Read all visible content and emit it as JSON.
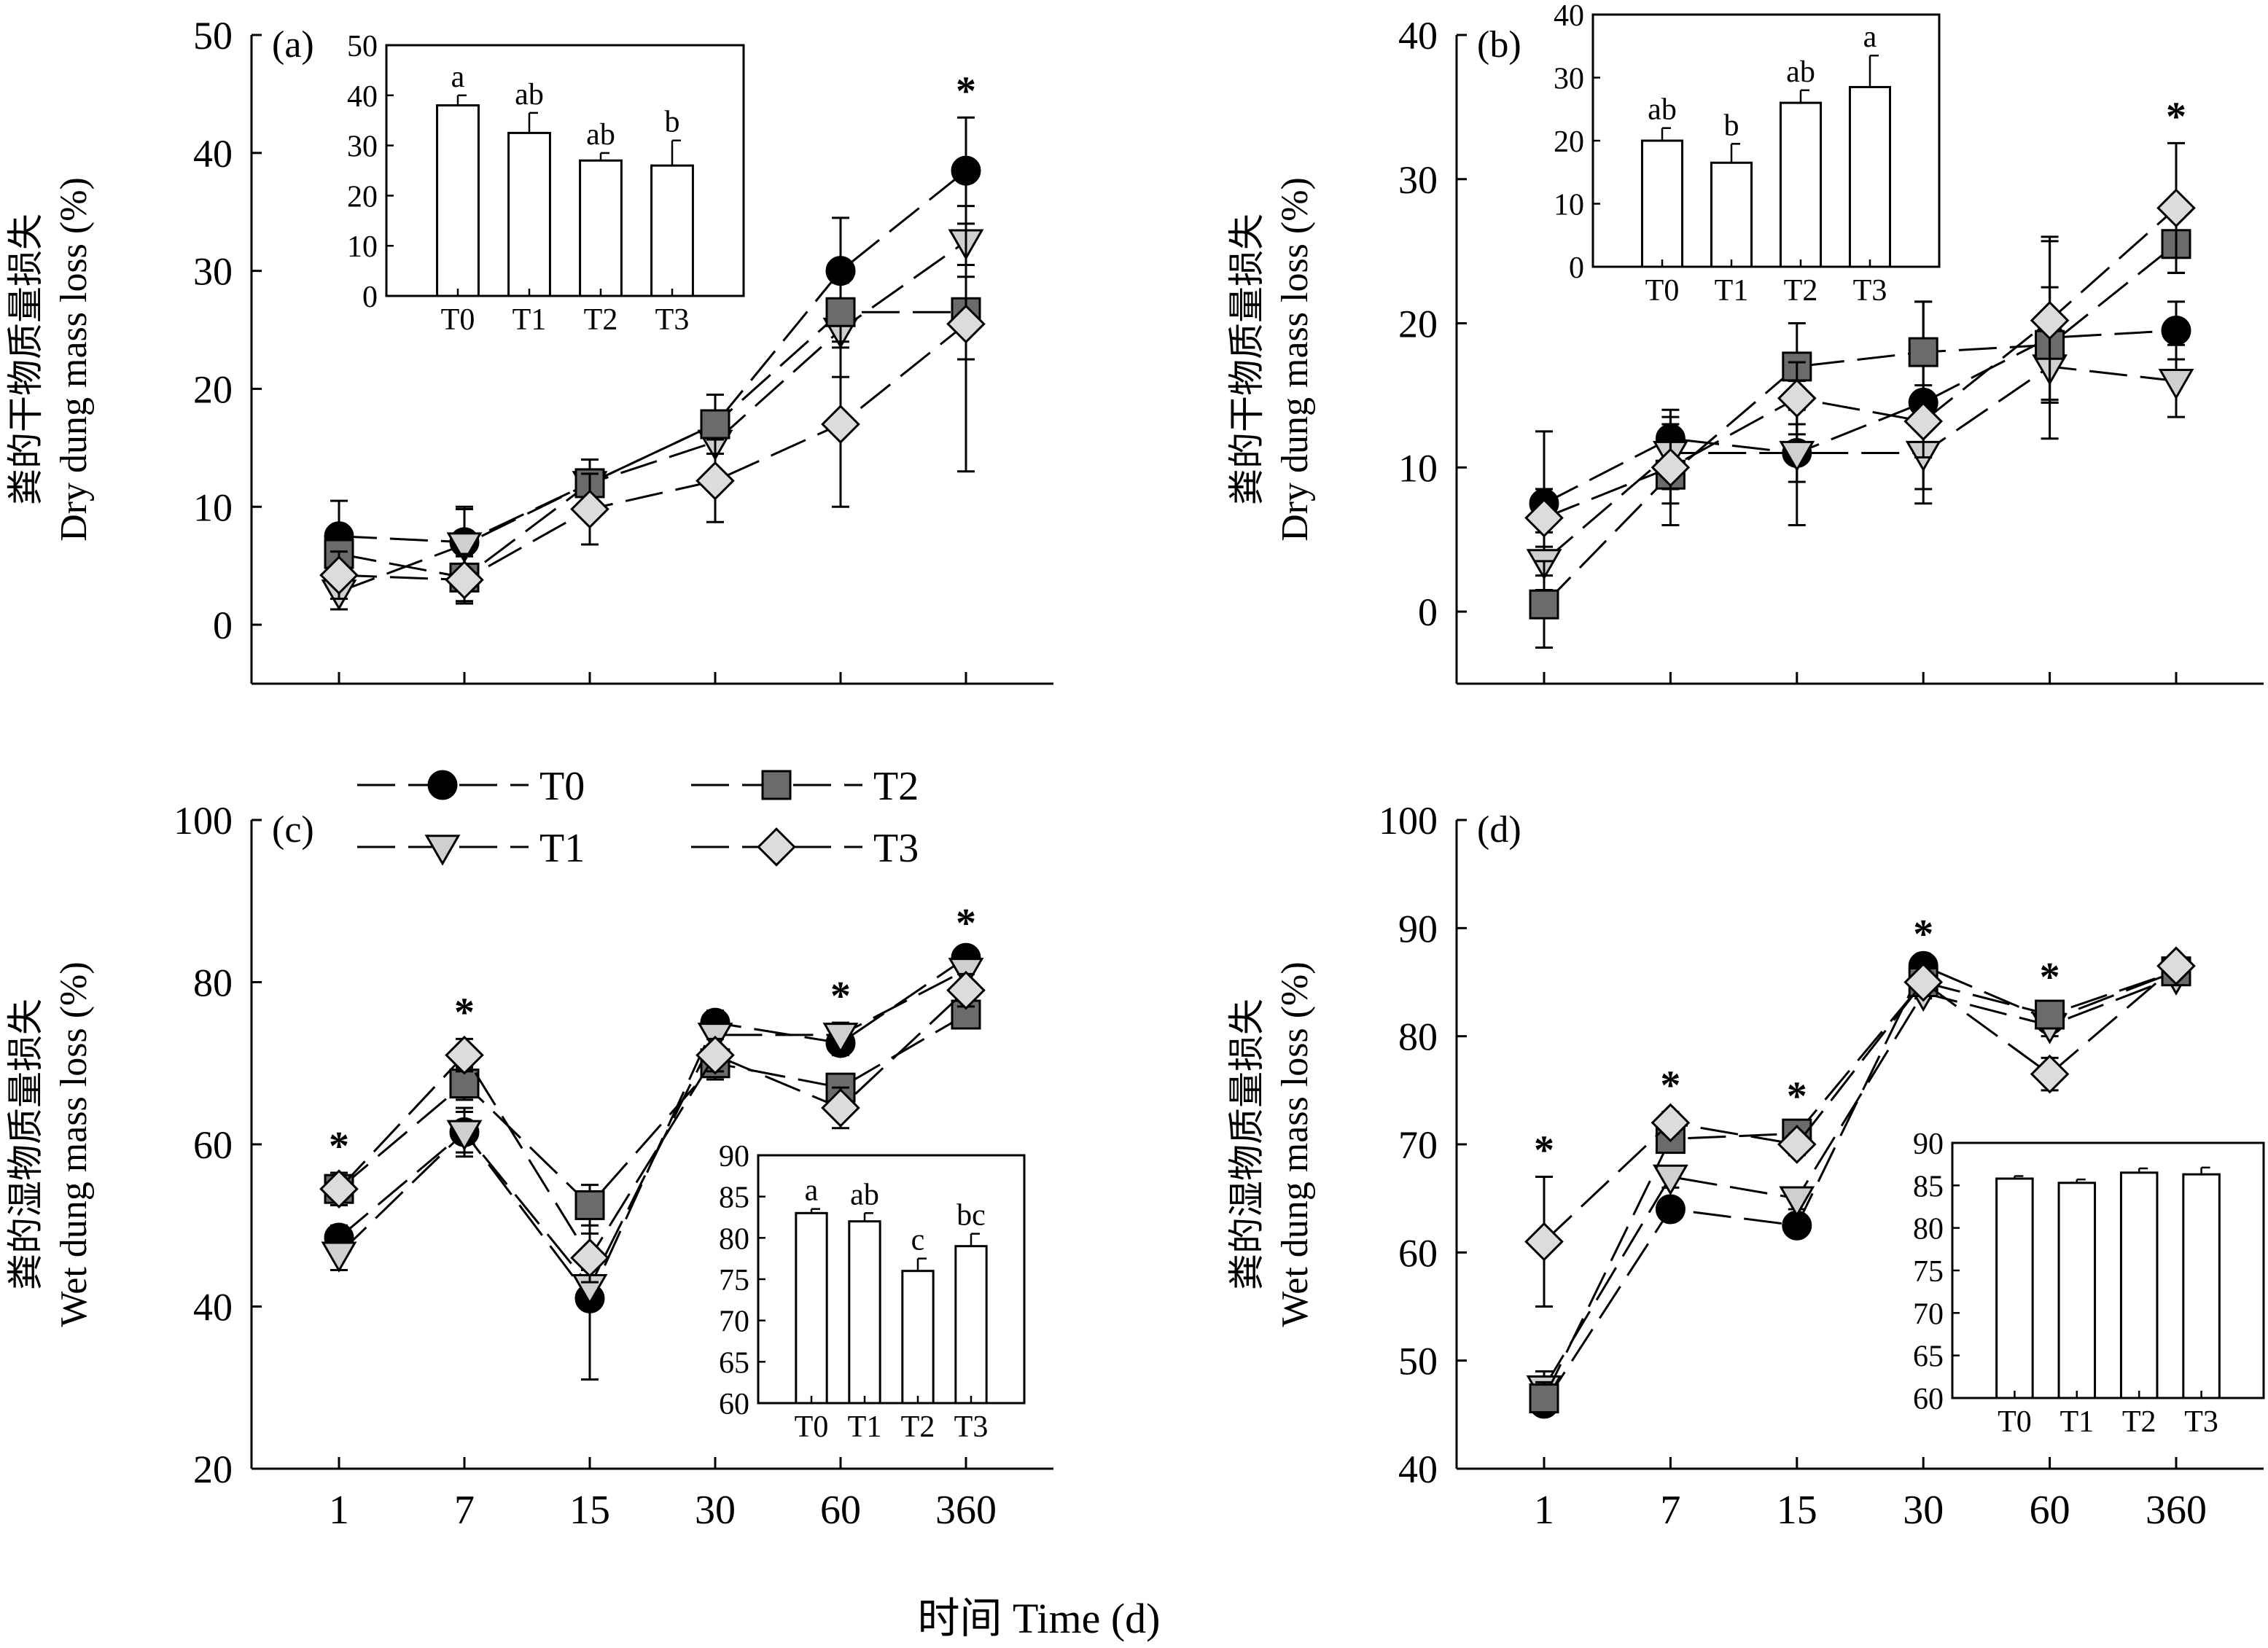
{
  "figure": {
    "xlabel": "时间 Time (d)"
  },
  "legend": {
    "items": [
      {
        "label": "T0",
        "marker": "circle",
        "fill": "#000000"
      },
      {
        "label": "T1",
        "marker": "triangle-down",
        "fill": "#cfcfcf"
      },
      {
        "label": "T2",
        "marker": "square",
        "fill": "#6b6b6b"
      },
      {
        "label": "T3",
        "marker": "diamond",
        "fill": "#dcdcdc"
      }
    ]
  },
  "chart_data": [
    {
      "id": "a",
      "panel_label": "(a)",
      "type": "line",
      "ylabel_cn": "粪的干物质量损失",
      "ylabel_en": "Dry dung mass loss (%)",
      "x": [
        "1",
        "7",
        "15",
        "30",
        "60",
        "360"
      ],
      "ylim": [
        -5,
        50
      ],
      "yticks": [
        0,
        10,
        20,
        30,
        40,
        50
      ],
      "series": [
        {
          "name": "T0",
          "values": [
            7.5,
            7.0,
            12.0,
            17.0,
            30.0,
            38.5
          ],
          "errors": [
            3.0,
            3.0,
            2.0,
            2.5,
            4.5,
            4.5
          ]
        },
        {
          "name": "T1",
          "values": [
            2.8,
            6.8,
            12.0,
            15.5,
            25.0,
            32.5
          ],
          "errors": [
            1.5,
            3.0,
            2.0,
            2.5,
            4.0,
            3.0
          ]
        },
        {
          "name": "T2",
          "values": [
            6.0,
            4.0,
            12.0,
            17.0,
            26.5,
            26.5
          ],
          "errors": [
            1.5,
            2.0,
            2.0,
            2.5,
            3.0,
            4.0
          ]
        },
        {
          "name": "T3",
          "values": [
            4.2,
            3.8,
            9.8,
            12.2,
            17.0,
            25.5
          ],
          "errors": [
            2.0,
            2.0,
            3.0,
            3.5,
            7.0,
            12.5
          ]
        }
      ],
      "significance": [
        {
          "x": "360",
          "label": "*"
        }
      ],
      "inset": {
        "type": "bar",
        "categories": [
          "T0",
          "T1",
          "T2",
          "T3"
        ],
        "values": [
          38,
          32.5,
          27,
          26
        ],
        "errors": [
          2,
          4,
          1.5,
          5
        ],
        "letters": [
          "a",
          "ab",
          "ab",
          "b"
        ],
        "ylim": [
          0,
          50
        ],
        "yticks": [
          0,
          10,
          20,
          30,
          40,
          50
        ]
      }
    },
    {
      "id": "b",
      "panel_label": "(b)",
      "type": "line",
      "ylabel_cn": "粪的干物质量损失",
      "ylabel_en": "Dry dung mass loss (%)",
      "x": [
        "1",
        "7",
        "15",
        "30",
        "60",
        "360"
      ],
      "ylim": [
        -5,
        40
      ],
      "yticks": [
        0,
        10,
        20,
        30,
        40
      ],
      "series": [
        {
          "name": "T0",
          "values": [
            7.5,
            12.0,
            11.0,
            14.5,
            19.0,
            19.5
          ],
          "errors": [
            5.0,
            2.0,
            5.0,
            7.0,
            7.0,
            2.0
          ]
        },
        {
          "name": "T1",
          "values": [
            3.5,
            11.0,
            11.0,
            11.0,
            17.0,
            16.0
          ],
          "errors": [
            2.0,
            2.5,
            2.0,
            2.5,
            2.5,
            2.5
          ]
        },
        {
          "name": "T2",
          "values": [
            0.5,
            9.5,
            17.0,
            18.0,
            18.5,
            25.5
          ],
          "errors": [
            3.0,
            3.5,
            3.0,
            3.5,
            4.0,
            2.0
          ]
        },
        {
          "name": "T3",
          "values": [
            6.5,
            10.0,
            14.8,
            13.2,
            20.2,
            28.0
          ],
          "errors": [
            2.0,
            2.5,
            2.5,
            2.5,
            5.5,
            4.5
          ]
        }
      ],
      "significance": [
        {
          "x": "360",
          "label": "*"
        }
      ],
      "inset": {
        "type": "bar",
        "categories": [
          "T0",
          "T1",
          "T2",
          "T3"
        ],
        "values": [
          20,
          16.5,
          26,
          28.5
        ],
        "errors": [
          2,
          3,
          2,
          5
        ],
        "letters": [
          "ab",
          "b",
          "ab",
          "a"
        ],
        "ylim": [
          0,
          40
        ],
        "yticks": [
          0,
          10,
          20,
          30,
          40
        ]
      }
    },
    {
      "id": "c",
      "panel_label": "(c)",
      "type": "line",
      "ylabel_cn": "粪的湿物质量损失",
      "ylabel_en": "Wet dung mass loss (%)",
      "x": [
        "1",
        "7",
        "15",
        "30",
        "60",
        "360"
      ],
      "ylim": [
        20,
        100
      ],
      "yticks": [
        20,
        40,
        60,
        80,
        100
      ],
      "series": [
        {
          "name": "T0",
          "values": [
            48.5,
            61.5,
            41.0,
            75.0,
            72.5,
            83.0
          ],
          "errors": [
            1.5,
            3.0,
            10.0,
            1.5,
            1.5,
            1.0
          ]
        },
        {
          "name": "T1",
          "values": [
            46.5,
            61.5,
            42.5,
            73.5,
            73.5,
            81.5
          ],
          "errors": [
            2.0,
            2.5,
            2.0,
            1.5,
            1.5,
            1.5
          ]
        },
        {
          "name": "T2",
          "values": [
            54.5,
            67.5,
            52.5,
            70.0,
            67.0,
            76.0
          ],
          "errors": [
            1.5,
            2.0,
            2.5,
            2.0,
            1.5,
            1.5
          ]
        },
        {
          "name": "T3",
          "values": [
            54.5,
            71.0,
            46.0,
            71.0,
            64.5,
            79.0
          ],
          "errors": [
            2.0,
            2.0,
            3.0,
            2.0,
            2.5,
            2.0
          ]
        }
      ],
      "significance": [
        {
          "x": "1",
          "label": "*"
        },
        {
          "x": "7",
          "label": "*"
        },
        {
          "x": "60",
          "label": "*"
        },
        {
          "x": "360",
          "label": "*"
        }
      ],
      "inset": {
        "type": "bar",
        "categories": [
          "T0",
          "T1",
          "T2",
          "T3"
        ],
        "values": [
          83,
          82,
          76,
          79
        ],
        "errors": [
          0.5,
          1,
          1.5,
          1.5
        ],
        "letters": [
          "a",
          "ab",
          "c",
          "bc"
        ],
        "ylim": [
          60,
          90
        ],
        "yticks": [
          60,
          65,
          70,
          75,
          80,
          85,
          90
        ]
      }
    },
    {
      "id": "d",
      "panel_label": "(d)",
      "type": "line",
      "ylabel_cn": "粪的湿物质量损失",
      "ylabel_en": "Wet dung mass loss (%)",
      "x": [
        "1",
        "7",
        "15",
        "30",
        "60",
        "360"
      ],
      "ylim": [
        40,
        100
      ],
      "yticks": [
        40,
        50,
        60,
        70,
        80,
        90,
        100
      ],
      "series": [
        {
          "name": "T0",
          "values": [
            46.0,
            64.0,
            62.5,
            86.5,
            81.5,
            86.0
          ],
          "errors": [
            1.0,
            1.0,
            1.0,
            0.5,
            1.0,
            0.5
          ]
        },
        {
          "name": "T1",
          "values": [
            47.5,
            67.0,
            65.0,
            84.0,
            81.0,
            85.5
          ],
          "errors": [
            1.5,
            1.0,
            1.0,
            0.5,
            1.0,
            0.5
          ]
        },
        {
          "name": "T2",
          "values": [
            46.5,
            70.5,
            71.0,
            85.0,
            82.0,
            86.0
          ],
          "errors": [
            1.5,
            1.0,
            1.0,
            0.5,
            1.0,
            0.5
          ]
        },
        {
          "name": "T3",
          "values": [
            61.0,
            72.0,
            70.0,
            85.0,
            76.5,
            86.5
          ],
          "errors": [
            6.0,
            1.0,
            1.0,
            0.5,
            1.5,
            0.5
          ]
        }
      ],
      "significance": [
        {
          "x": "1",
          "label": "*"
        },
        {
          "x": "7",
          "label": "*"
        },
        {
          "x": "15",
          "label": "*"
        },
        {
          "x": "30",
          "label": "*"
        },
        {
          "x": "60",
          "label": "*"
        }
      ],
      "inset": {
        "type": "bar",
        "categories": [
          "T0",
          "T1",
          "T2",
          "T3"
        ],
        "values": [
          85.8,
          85.3,
          86.5,
          86.3
        ],
        "errors": [
          0.3,
          0.4,
          0.5,
          0.8
        ],
        "letters": [],
        "ylim": [
          60,
          90
        ],
        "yticks": [
          60,
          65,
          70,
          75,
          80,
          85,
          90
        ]
      }
    }
  ]
}
